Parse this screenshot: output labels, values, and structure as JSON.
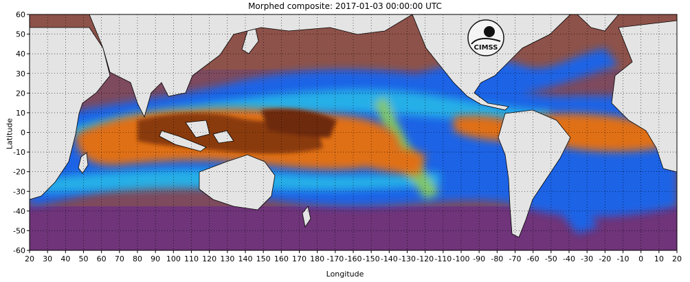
{
  "title": "Morphed composite: 2017-01-03 00:00:00 UTC",
  "logo_text": "CIMSS",
  "axes": {
    "xlabel": "Longitude",
    "ylabel": "Latitude",
    "x_ticks": [
      "20",
      "30",
      "40",
      "50",
      "60",
      "70",
      "80",
      "90",
      "100",
      "110",
      "120",
      "130",
      "140",
      "150",
      "160",
      "170",
      "180",
      "-170",
      "-160",
      "-150",
      "-140",
      "-130",
      "-120",
      "-110",
      "-100",
      "-90",
      "-80",
      "-70",
      "-60",
      "-50",
      "-40",
      "-30",
      "-20",
      "-10",
      "0",
      "10",
      "20"
    ],
    "y_ticks": [
      "60",
      "50",
      "40",
      "30",
      "20",
      "10",
      "0",
      "-10",
      "-20",
      "-30",
      "-40",
      "-50",
      "-60"
    ]
  },
  "colors": {
    "land": "#e4e4e4",
    "dry": "#7a3f73",
    "moist_orange": "#e07018",
    "very_moist": "#8a3a10",
    "blue": "#1e64e6",
    "cyan": "#28b8e8",
    "green": "#8cd25a",
    "yellow": "#f0e646"
  }
}
